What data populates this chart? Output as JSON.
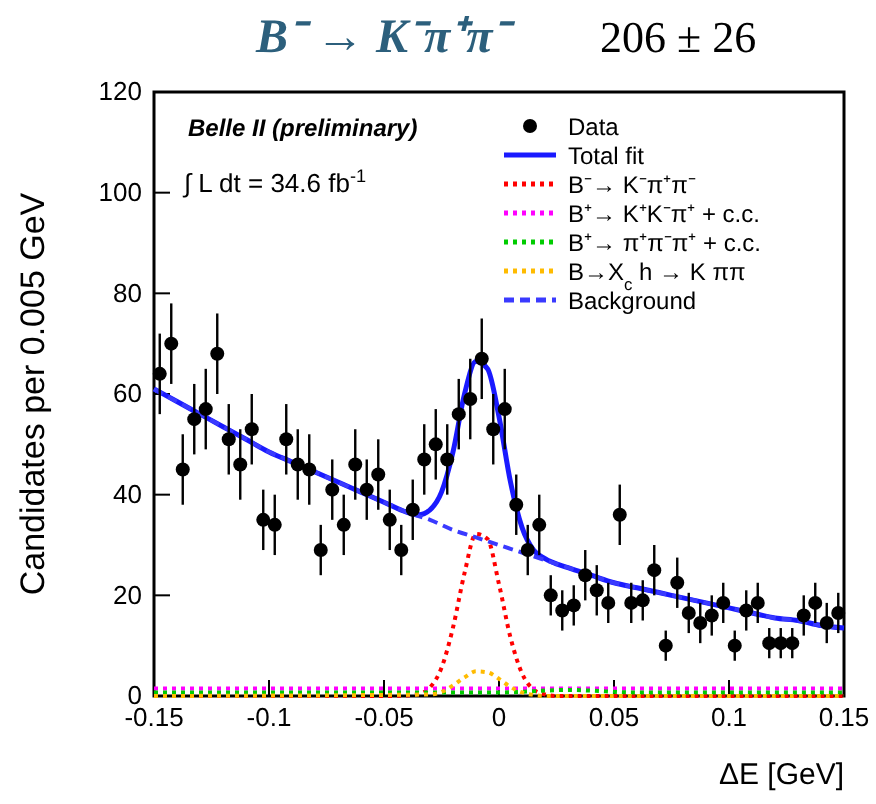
{
  "chart_data": {
    "type": "scatter",
    "title": "B⁻ → K⁻π⁺π⁻",
    "subtitle": "206 ± 26",
    "xlabel": "ΔE [GeV]",
    "ylabel": "Candidates per  0.005 GeV",
    "annotations": [
      "Belle II (preliminary)",
      "∫ L dt = 34.6 fb$^{-1}$"
    ],
    "xlim": [
      -0.15,
      0.15
    ],
    "xticks": [
      -0.15,
      -0.1,
      -0.05,
      0,
      0.05,
      0.1,
      0.15
    ],
    "ylim": [
      0,
      120
    ],
    "yticks": [
      0,
      20,
      40,
      60,
      80,
      100,
      120
    ],
    "grid": false,
    "legend": "top right",
    "series": [
      {
        "name": "Data",
        "marker": "circle",
        "color": "#000000",
        "x": [
          -0.1475,
          -0.1425,
          -0.1375,
          -0.1325,
          -0.1275,
          -0.1225,
          -0.1175,
          -0.1125,
          -0.1075,
          -0.1025,
          -0.0975,
          -0.0925,
          -0.0875,
          -0.0825,
          -0.0775,
          -0.0725,
          -0.0675,
          -0.0625,
          -0.0575,
          -0.0525,
          -0.0475,
          -0.0425,
          -0.0375,
          -0.0325,
          -0.0275,
          -0.0225,
          -0.0175,
          -0.0125,
          -0.0075,
          -0.0025,
          0.0025,
          0.0075,
          0.0125,
          0.0175,
          0.0225,
          0.0275,
          0.0325,
          0.0375,
          0.0425,
          0.0475,
          0.0525,
          0.0575,
          0.0625,
          0.0675,
          0.0725,
          0.0775,
          0.0825,
          0.0875,
          0.0925,
          0.0975,
          0.1025,
          0.1075,
          0.1125,
          0.1175,
          0.1225,
          0.1275,
          0.1325,
          0.1375,
          0.1425,
          0.1475
        ],
        "values": [
          64,
          70,
          45,
          55,
          57,
          68,
          51,
          46,
          53,
          35,
          34,
          51,
          46,
          45,
          29,
          41,
          34,
          46,
          41,
          44,
          35,
          29,
          37,
          47,
          50,
          47,
          56,
          59,
          67,
          53,
          57,
          38,
          29,
          34,
          20,
          17,
          18,
          24,
          21,
          18.5,
          36,
          18.5,
          19,
          25,
          10,
          22.5,
          16.5,
          14.5,
          16,
          18.5,
          10,
          17,
          18.5,
          10.5,
          10.5,
          10.5,
          16,
          18.5,
          14.5,
          16.5
        ],
        "errors": [
          8,
          8,
          7,
          7,
          8,
          8,
          7,
          7,
          7,
          6,
          6,
          7,
          7,
          7,
          5,
          6,
          6,
          7,
          6,
          7,
          6,
          5,
          6,
          7,
          7,
          7,
          7,
          8,
          8,
          7,
          8,
          6,
          5,
          6,
          4,
          4,
          4,
          5,
          5,
          4,
          6,
          4,
          4,
          5,
          3,
          5,
          4,
          4,
          4,
          4,
          3,
          4,
          4,
          3,
          3,
          3,
          4,
          4,
          4,
          4
        ]
      },
      {
        "name": "Total fit",
        "type": "line",
        "line_style": "solid",
        "color": "#1a1aff",
        "x": [
          -0.15,
          -0.14,
          -0.13,
          -0.12,
          -0.11,
          -0.1,
          -0.09,
          -0.08,
          -0.07,
          -0.06,
          -0.05,
          -0.04,
          -0.035,
          -0.03,
          -0.025,
          -0.02,
          -0.015,
          -0.01,
          -0.005,
          0,
          0.005,
          0.01,
          0.015,
          0.02,
          0.03,
          0.04,
          0.05,
          0.06,
          0.07,
          0.08,
          0.09,
          0.1,
          0.11,
          0.12,
          0.13,
          0.14,
          0.15
        ],
        "values": [
          61,
          58.5,
          56,
          53.5,
          51,
          48.5,
          46.5,
          44.5,
          42.5,
          40.5,
          38.5,
          36.5,
          36,
          37,
          40.5,
          48.5,
          60,
          66.5,
          65,
          55.5,
          42.5,
          33.5,
          29,
          27.3,
          25.5,
          24,
          22.5,
          21.5,
          20.5,
          19.5,
          18.5,
          17.5,
          16.5,
          15.5,
          15,
          14,
          13.5
        ]
      },
      {
        "name": "B⁻→ K⁻π⁺π⁻",
        "type": "line",
        "line_style": "dotted",
        "color": "#ff0000",
        "x": [
          -0.15,
          -0.05,
          -0.04,
          -0.035,
          -0.03,
          -0.025,
          -0.02,
          -0.015,
          -0.01,
          -0.005,
          0,
          0.005,
          0.01,
          0.015,
          0.02,
          0.025,
          0.15
        ],
        "values": [
          0,
          0,
          0.1,
          0.4,
          1.7,
          5.6,
          13.6,
          24.4,
          32.2,
          31.2,
          22.2,
          11.6,
          4.5,
          1.3,
          0.3,
          0,
          0
        ]
      },
      {
        "name": "B⁺→ K⁺K⁻π⁺ + c.c.",
        "type": "line",
        "line_style": "dotted",
        "color": "#ff00ff",
        "x": [
          -0.15,
          0,
          0.15
        ],
        "values": [
          1.5,
          1.5,
          1.5
        ]
      },
      {
        "name": "B⁺→ π⁺π⁻π⁺ + c.c.",
        "type": "line",
        "line_style": "dotted",
        "color": "#00cc00",
        "x": [
          -0.15,
          0,
          0.03,
          0.06,
          0.15
        ],
        "values": [
          0.7,
          0.7,
          1.2,
          0.7,
          0.7
        ]
      },
      {
        "name": "B→X$_{c}$ h → K ππ",
        "type": "line",
        "line_style": "dotted",
        "color": "#ffbb00",
        "x": [
          -0.15,
          -0.03,
          -0.025,
          -0.02,
          -0.015,
          -0.01,
          -0.005,
          0,
          0.005,
          0.01,
          0.015,
          0.02,
          0.15
        ],
        "values": [
          0,
          0.3,
          0.8,
          2.1,
          3.7,
          4.9,
          4.7,
          3.4,
          1.8,
          0.7,
          0.2,
          0,
          0
        ]
      },
      {
        "name": "Background",
        "type": "line",
        "line_style": "dashed",
        "color": "#3a3aff",
        "x": [
          -0.15,
          -0.14,
          -0.13,
          -0.12,
          -0.11,
          -0.1,
          -0.09,
          -0.08,
          -0.07,
          -0.06,
          -0.05,
          -0.04,
          -0.03,
          -0.02,
          -0.01,
          0,
          0.01,
          0.02,
          0.03,
          0.04,
          0.05,
          0.06,
          0.07,
          0.08,
          0.09,
          0.1,
          0.11,
          0.12,
          0.13,
          0.14,
          0.15
        ],
        "values": [
          61,
          58.5,
          56,
          53.5,
          51,
          48.5,
          46.5,
          44.5,
          42.5,
          40.5,
          38.5,
          36.5,
          35,
          33,
          31.5,
          30,
          28.5,
          27,
          25.5,
          24,
          22.5,
          21.5,
          20.5,
          19.5,
          18.5,
          17.5,
          16.5,
          15.5,
          15,
          14,
          13.5
        ]
      }
    ]
  }
}
